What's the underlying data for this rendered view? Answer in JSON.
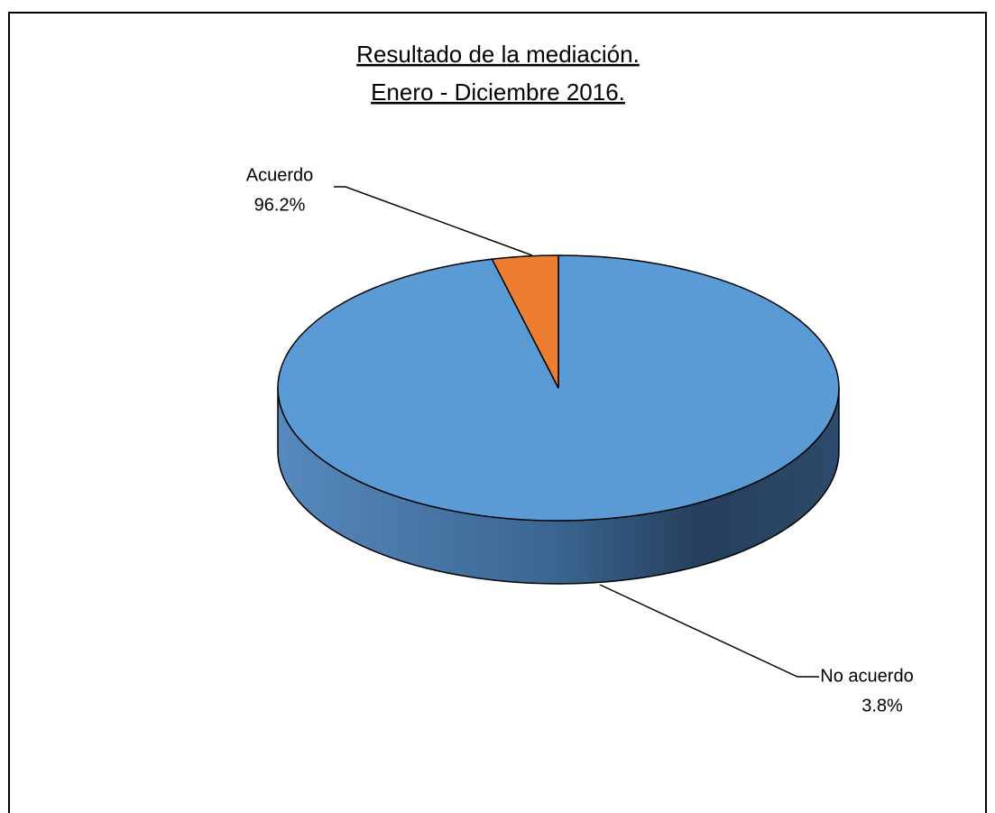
{
  "chart_data": {
    "type": "pie",
    "title": "Resultado de la mediación.",
    "subtitle": "Enero - Diciembre 2016.",
    "categories": [
      "Acuerdo",
      "No acuerdo"
    ],
    "values": [
      96.2,
      3.8
    ],
    "value_labels": [
      "96.2%",
      "3.8%"
    ],
    "colors": [
      "#5b9bd5",
      "#ed7d31"
    ]
  }
}
